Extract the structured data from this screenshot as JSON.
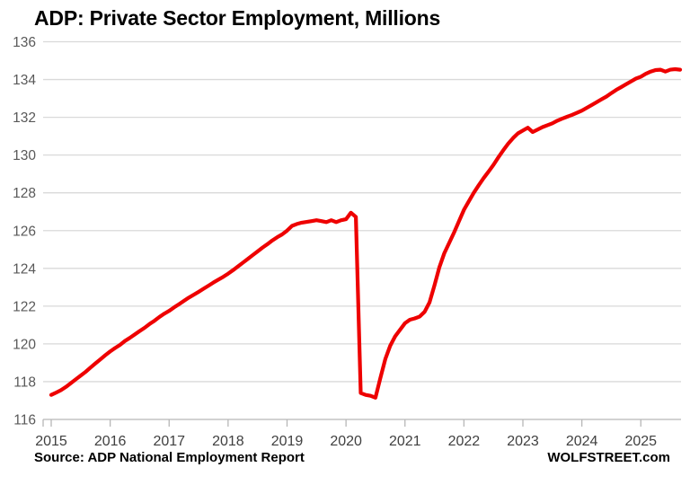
{
  "title": "ADP: Private Sector Employment, Millions",
  "footer": {
    "source": "Source: ADP National Employment Report",
    "brand": "WOLFSTREET.com"
  },
  "colors": {
    "line": "#ee0000",
    "gridline": "#d9d9d9",
    "axis_line": "#b7b7b7",
    "tick_mark": "#b7b7b7",
    "y_label": "#595959",
    "x_label": "#404040",
    "title": "#000000",
    "background": "#ffffff"
  },
  "chart_data": {
    "type": "line",
    "title": "ADP: Private Sector Employment, Millions",
    "xlabel": "",
    "ylabel": "",
    "ylim": [
      116,
      136
    ],
    "y_ticks": [
      116,
      118,
      120,
      122,
      124,
      126,
      128,
      130,
      132,
      134,
      136
    ],
    "x_tick_labels": [
      "2015",
      "2016",
      "2017",
      "2018",
      "2019",
      "2020",
      "2021",
      "2022",
      "2023",
      "2024",
      "2025"
    ],
    "grid": "horizontal",
    "legend": "none",
    "x_start_month": "2015-01",
    "x_end_month": "2025-09",
    "months_per_tick": 12,
    "series": [
      {
        "name": "Private sector employment, millions",
        "color": "#ee0000",
        "values": [
          117.3,
          117.42,
          117.55,
          117.72,
          117.92,
          118.12,
          118.32,
          118.52,
          118.75,
          118.97,
          119.18,
          119.4,
          119.6,
          119.78,
          119.95,
          120.15,
          120.32,
          120.5,
          120.68,
          120.85,
          121.05,
          121.22,
          121.42,
          121.6,
          121.75,
          121.93,
          122.1,
          122.28,
          122.45,
          122.6,
          122.76,
          122.92,
          123.08,
          123.25,
          123.4,
          123.55,
          123.72,
          123.9,
          124.1,
          124.3,
          124.5,
          124.7,
          124.9,
          125.1,
          125.28,
          125.48,
          125.65,
          125.8,
          126.0,
          126.25,
          126.35,
          126.42,
          126.46,
          126.5,
          126.55,
          126.5,
          126.45,
          126.55,
          126.45,
          126.55,
          126.6,
          126.95,
          126.72,
          117.4,
          117.3,
          117.25,
          117.15,
          118.2,
          119.2,
          119.9,
          120.4,
          120.75,
          121.1,
          121.28,
          121.35,
          121.45,
          121.7,
          122.2,
          123.1,
          124.05,
          124.8,
          125.35,
          125.9,
          126.5,
          127.1,
          127.55,
          128.0,
          128.4,
          128.78,
          129.12,
          129.48,
          129.88,
          130.25,
          130.6,
          130.9,
          131.15,
          131.3,
          131.45,
          131.22,
          131.35,
          131.48,
          131.58,
          131.68,
          131.82,
          131.93,
          132.03,
          132.13,
          132.24,
          132.35,
          132.5,
          132.65,
          132.8,
          132.95,
          133.1,
          133.28,
          133.45,
          133.6,
          133.75,
          133.9,
          134.05,
          134.15,
          134.3,
          134.42,
          134.5,
          134.52,
          134.42,
          134.52,
          134.55,
          134.52
        ]
      }
    ]
  }
}
